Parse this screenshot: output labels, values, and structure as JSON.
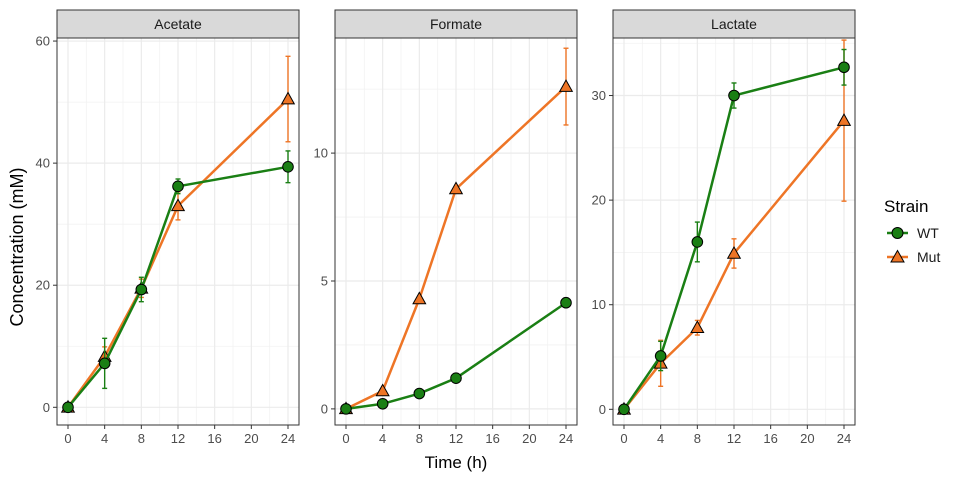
{
  "chart_data": {
    "type": "line",
    "ylabel": "Concentration (mM)",
    "xlabel": "Time (h)",
    "legend": {
      "title": "Strain",
      "placement": "right",
      "entries": [
        "WT",
        "Mut"
      ]
    },
    "colors": {
      "WT": "#1a7f14",
      "Mut": "#ee7526",
      "strip": "#d9d9d9",
      "grid": "#ebebeb"
    },
    "x_ticks": [
      "0",
      "4",
      "8",
      "12",
      "16",
      "20",
      "24"
    ],
    "panels": [
      {
        "title": "Acetate",
        "xlim": [
          -1.2,
          25.2
        ],
        "ylim": [
          -2.9,
          60.5
        ],
        "y_ticks": [
          0,
          20,
          40,
          60
        ],
        "series": [
          {
            "name": "WT",
            "x": [
              0,
              4,
              8,
              12,
              24
            ],
            "y": [
              0,
              7.2,
              19.3,
              36.2,
              39.4
            ],
            "err": [
              0,
              4.1,
              2.0,
              1.2,
              2.6
            ]
          },
          {
            "name": "Mut",
            "x": [
              0,
              4,
              8,
              12,
              24
            ],
            "y": [
              0,
              8.3,
              19.5,
              33.0,
              50.5
            ],
            "err": [
              0,
              1.6,
              1.5,
              2.3,
              7.0
            ]
          }
        ]
      },
      {
        "title": "Formate",
        "xlim": [
          -1.2,
          25.2
        ],
        "ylim": [
          -0.63,
          14.5
        ],
        "y_ticks": [
          0,
          5,
          10
        ],
        "series": [
          {
            "name": "WT",
            "x": [
              0,
              4,
              8,
              12,
              24
            ],
            "y": [
              0,
              0.2,
              0.6,
              1.2,
              4.15
            ],
            "err": [
              0,
              0,
              0,
              0,
              0
            ]
          },
          {
            "name": "Mut",
            "x": [
              0,
              4,
              8,
              12,
              24
            ],
            "y": [
              0,
              0.7,
              4.3,
              8.6,
              12.6
            ],
            "err": [
              0,
              0,
              0,
              0,
              1.5
            ]
          }
        ]
      },
      {
        "title": "Lactate",
        "xlim": [
          -1.2,
          25.2
        ],
        "ylim": [
          -1.5,
          35.5
        ],
        "y_ticks": [
          0,
          10,
          20,
          30
        ],
        "series": [
          {
            "name": "WT",
            "x": [
              0,
              4,
              8,
              12,
              24
            ],
            "y": [
              0,
              5.1,
              16.0,
              30.0,
              32.7
            ],
            "err": [
              0,
              1.4,
              1.9,
              1.2,
              1.7
            ]
          },
          {
            "name": "Mut",
            "x": [
              0,
              4,
              8,
              12,
              24
            ],
            "y": [
              0,
              4.4,
              7.8,
              14.9,
              27.6
            ],
            "err": [
              0,
              2.2,
              0.7,
              1.4,
              7.7
            ]
          }
        ]
      }
    ]
  }
}
